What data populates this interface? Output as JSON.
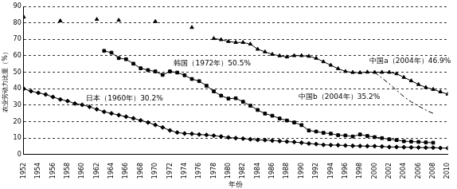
{
  "chart_data": {
    "type": "line",
    "x_label": "年份",
    "y_label": "农业劳动力比重（%）",
    "x": [
      1952,
      1953,
      1954,
      1955,
      1956,
      1957,
      1958,
      1959,
      1960,
      1961,
      1962,
      1963,
      1964,
      1965,
      1966,
      1967,
      1968,
      1969,
      1970,
      1971,
      1972,
      1973,
      1974,
      1975,
      1976,
      1977,
      1978,
      1979,
      1980,
      1981,
      1982,
      1983,
      1984,
      1985,
      1986,
      1987,
      1988,
      1989,
      1990,
      1991,
      1992,
      1993,
      1994,
      1995,
      1996,
      1997,
      1998,
      1999,
      2000,
      2001,
      2002,
      2003,
      2004,
      2005,
      2006,
      2007,
      2008,
      2009,
      2010
    ],
    "series": [
      {
        "color": "#000000",
        "marker": "triangle",
        "line_style": "solid",
        "values": [
          83.5,
          null,
          null,
          null,
          null,
          81.2,
          null,
          null,
          null,
          null,
          82.1,
          null,
          null,
          81.6,
          null,
          null,
          null,
          null,
          80.8,
          null,
          null,
          null,
          null,
          77.2,
          null,
          null,
          70.5,
          69.8,
          68.7,
          68.1,
          68.1,
          67.1,
          64,
          62.4,
          60.9,
          60,
          59.3,
          60.1,
          60.1,
          59.7,
          58.5,
          56.4,
          54.3,
          52.2,
          50.5,
          49.9,
          49.8,
          50.1,
          50,
          50,
          50,
          49.1,
          46.9,
          44.8,
          42.6,
          40.8,
          39.6,
          38.1,
          36.7
        ]
      },
      {
        "color": "#000000",
        "marker": "square",
        "line_style": "solid",
        "values": [
          null,
          null,
          null,
          null,
          null,
          null,
          null,
          null,
          null,
          null,
          null,
          63,
          61.9,
          58.6,
          57.9,
          55.2,
          52.4,
          51.3,
          50.5,
          48.4,
          50.5,
          49.8,
          48.2,
          45.9,
          44.6,
          41.8,
          38.4,
          35.8,
          34,
          34.2,
          32.1,
          29.7,
          27.1,
          24.9,
          23.6,
          21.9,
          20.7,
          19.5,
          17.9,
          14.6,
          14,
          13.2,
          12.7,
          11.8,
          11.6,
          11,
          12.2,
          11.3,
          10.6,
          10,
          9.3,
          8.8,
          8.1,
          7.9,
          7.7,
          7.4,
          7.2,
          null,
          null
        ]
      },
      {
        "color": "#000000",
        "marker": "diamond",
        "line_style": "solid",
        "values": [
          40,
          38.5,
          37.5,
          36.5,
          35,
          33.5,
          32.5,
          31,
          30.2,
          29,
          27.5,
          26,
          25,
          24,
          23,
          22,
          20.8,
          19.5,
          18,
          16.5,
          14.7,
          13.4,
          12.8,
          12.6,
          12.2,
          11.9,
          11.5,
          11,
          10.4,
          10,
          9.7,
          9.3,
          8.9,
          8.8,
          8.5,
          8.2,
          7.9,
          7.6,
          7.2,
          6.7,
          6.4,
          5.9,
          5.8,
          5.7,
          5.5,
          5.3,
          5.2,
          5.1,
          5.1,
          4.9,
          4.6,
          4.6,
          4.5,
          4.4,
          4.3,
          4.2,
          4.2,
          4,
          3.9
        ]
      },
      {
        "color": "#000000",
        "marker": "none",
        "line_style": "dashdot",
        "values": [
          null,
          null,
          null,
          null,
          null,
          null,
          null,
          null,
          null,
          null,
          null,
          null,
          null,
          null,
          null,
          null,
          null,
          null,
          null,
          null,
          null,
          null,
          null,
          null,
          null,
          null,
          null,
          null,
          null,
          null,
          null,
          null,
          null,
          null,
          null,
          null,
          null,
          null,
          null,
          null,
          null,
          null,
          null,
          null,
          null,
          null,
          null,
          null,
          50,
          46.5,
          43,
          39,
          35.2,
          32,
          29.5,
          27,
          25,
          null,
          null
        ]
      }
    ],
    "annotations": [
      {
        "text": "韩国（1972年）50.5%",
        "x": 1972,
        "y": 50.5
      },
      {
        "text": "日本（1960年）30.2%",
        "x": 1960,
        "y": 30.2
      },
      {
        "text": "中国a（2004年）46.9%",
        "x": 2004,
        "y": 46.9
      },
      {
        "text": "中国b（2004年）35.2%",
        "x": 2004,
        "y": 35.2
      }
    ],
    "xlim": [
      1952,
      2010
    ],
    "xticks": [
      1952,
      1954,
      1956,
      1958,
      1960,
      1962,
      1964,
      1966,
      1968,
      1970,
      1972,
      1974,
      1976,
      1978,
      1980,
      1982,
      1984,
      1986,
      1988,
      1990,
      1992,
      1994,
      1996,
      1998,
      2000,
      2002,
      2004,
      2006,
      2008,
      2010
    ],
    "ylim": [
      0,
      90
    ],
    "yticks": [
      0,
      10,
      20,
      30,
      40,
      50,
      60,
      70,
      80,
      90
    ],
    "grid": true
  }
}
